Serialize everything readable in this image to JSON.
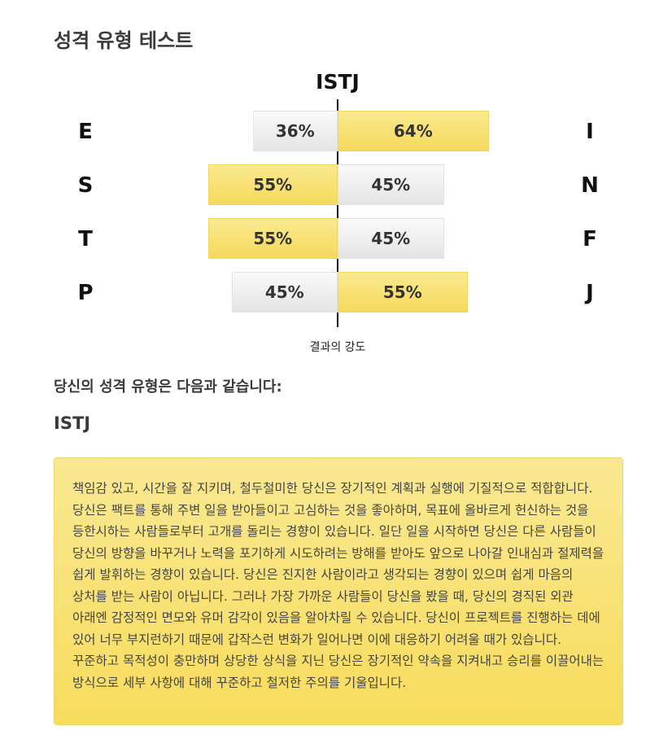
{
  "page": {
    "title": "성격 유형 테스트"
  },
  "chart_data": {
    "type": "bar",
    "title": "ISTJ",
    "xlabel": "결과의 강도",
    "rows": [
      {
        "left_letter": "E",
        "right_letter": "I",
        "left_value": 36,
        "right_value": 64,
        "left_label": "36%",
        "right_label": "64%",
        "dominant": "right"
      },
      {
        "left_letter": "S",
        "right_letter": "N",
        "left_value": 55,
        "right_value": 45,
        "left_label": "55%",
        "right_label": "45%",
        "dominant": "left"
      },
      {
        "left_letter": "T",
        "right_letter": "F",
        "left_value": 55,
        "right_value": 45,
        "left_label": "55%",
        "right_label": "45%",
        "dominant": "left"
      },
      {
        "left_letter": "P",
        "right_letter": "J",
        "left_value": 45,
        "right_value": 55,
        "left_label": "45%",
        "right_label": "55%",
        "dominant": "right"
      }
    ],
    "colors": {
      "dominant": "#f7dc5c",
      "other": "#e8e8e8"
    }
  },
  "result": {
    "heading": "당신의 성격 유형은 다음과 같습니다:",
    "type": "ISTJ",
    "description": "책임감 있고, 시간을 잘 지키며, 철두철미한 당신은 장기적인 계획과 실행에 기질적으로 적합합니다. 당신은 팩트를 통해 주변 일을 받아들이고 고심하는 것을 좋아하며, 목표에 올바르게 헌신하는 것을 등한시하는 사람들로부터 고개를 돌리는 경향이 있습니다. 일단 일을 시작하면 당신은 다른 사람들이 당신의 방향을 바꾸거나 노력을 포기하게 시도하려는 방해를 받아도 앞으로 나아갈 인내심과 절제력을 쉽게 발휘하는 경향이 있습니다. 당신은 진지한 사람이라고 생각되는 경향이 있으며 쉽게 마음의 상처를 받는 사람이 아닙니다. 그러나 가장 가까운 사람들이 당신을 봤을 때, 당신의 경직된 외관 아래엔 감정적인 면모와 유머 감각이 있음을 알아차릴 수 있습니다. 당신이 프로젝트를 진행하는 데에 있어 너무 부지런하기 때문에 갑작스런 변화가 일어나면 이에 대응하기 어려울 때가 있습니다. 꾸준하고 목적성이 충만하며 상당한 상식을 지닌 당신은 장기적인 약속을 지켜내고 승리를 이끌어내는 방식으로 세부 사항에 대해 꾸준하고 철저한 주의를 기울입니다."
  }
}
